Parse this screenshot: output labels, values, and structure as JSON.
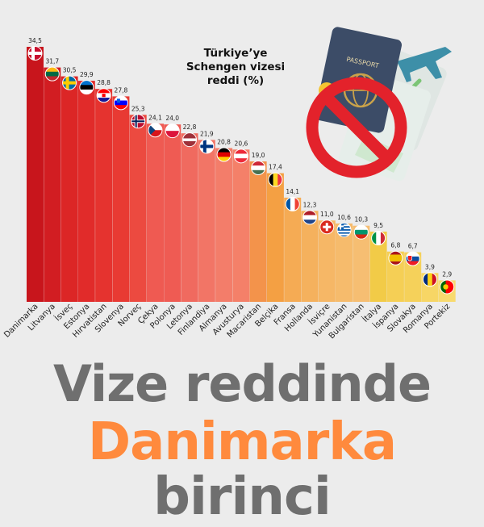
{
  "chart_data": {
    "type": "bar",
    "title_lines": [
      "Türkiye’ye",
      "Schengen vizesi",
      "reddi (%)"
    ],
    "categories": [
      "Danimarka",
      "Litvanya",
      "İsveç",
      "Estonya",
      "Hırvatistan",
      "Slovenya",
      "Norveç",
      "Çekya",
      "Polonya",
      "Letonya",
      "Finlandiya",
      "Almanya",
      "Avusturya",
      "Macaristan",
      "Belçika",
      "Fransa",
      "Hollanda",
      "İsviçre",
      "Yunanistan",
      "Bulgaristan",
      "İtalya",
      "İspanya",
      "Slovakya",
      "Romanya",
      "Portekiz"
    ],
    "values": [
      34.5,
      31.7,
      30.5,
      29.9,
      28.8,
      27.8,
      25.3,
      24.1,
      24.0,
      22.8,
      21.9,
      20.8,
      20.6,
      19.0,
      17.4,
      14.1,
      12.3,
      11.0,
      10.6,
      10.3,
      9.5,
      6.8,
      6.7,
      3.9,
      2.9
    ],
    "value_labels": [
      "34,5",
      "31,7",
      "30,5",
      "29,9",
      "28,8",
      "27,8",
      "25,3",
      "24,1",
      "24,0",
      "22,8",
      "21,9",
      "20,8",
      "20,6",
      "19,0",
      "17,4",
      "14,1",
      "12,3",
      "11,0",
      "10,6",
      "10,3",
      "9,5",
      "6,8",
      "6,7",
      "3,9",
      "2,9"
    ],
    "bar_colors": [
      "#c8151c",
      "#d21d22",
      "#dc2626",
      "#e12b2a",
      "#e5332f",
      "#e83a33",
      "#ec4a40",
      "#ef5a52",
      "#ef5b53",
      "#f06a5f",
      "#f27566",
      "#f37d6a",
      "#f48069",
      "#f3934b",
      "#f4a043",
      "#f5ab54",
      "#f5b15d",
      "#f6b766",
      "#f6bb6c",
      "#f6be72",
      "#f2cb47",
      "#f5cf55",
      "#f5d15a",
      "#f7d665",
      "#f8da6e"
    ],
    "flags": [
      "denmark-flag",
      "lithuania-flag",
      "sweden-flag",
      "estonia-flag",
      "croatia-flag",
      "slovenia-flag",
      "norway-flag",
      "czechia-flag",
      "poland-flag",
      "latvia-flag",
      "finland-flag",
      "germany-flag",
      "austria-flag",
      "hungary-flag",
      "belgium-flag",
      "france-flag",
      "netherlands-flag",
      "switzerland-flag",
      "greece-flag",
      "bulgaria-flag",
      "italy-flag",
      "spain-flag",
      "slovakia-flag",
      "romania-flag",
      "portugal-flag"
    ],
    "ylim": [
      0,
      34.5
    ],
    "grid": false,
    "legend": "none"
  },
  "illustration": {
    "passport_label": "PASSPORT",
    "icons": [
      "passport-icon",
      "airplane-icon",
      "prohibited-icon"
    ]
  },
  "headline": {
    "line1": "Vize reddinde",
    "line2": "Danimarka",
    "line3": "birinci"
  }
}
